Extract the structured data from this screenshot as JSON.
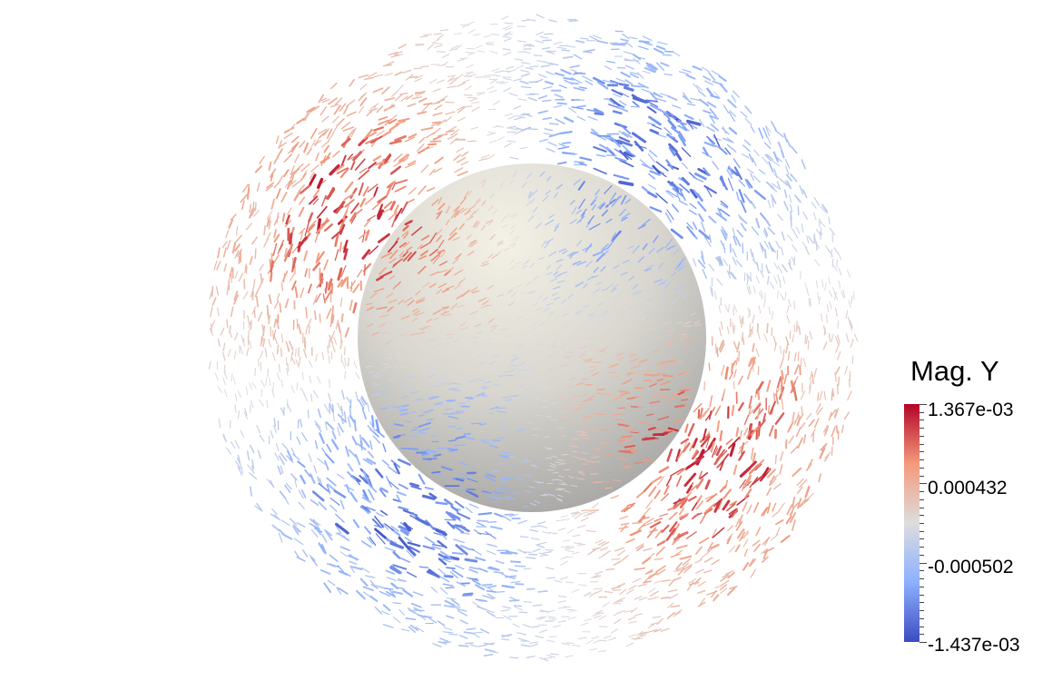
{
  "legend": {
    "title": "Mag. Y",
    "max_label": "1.367e-03",
    "mid_high_label": "0.000432",
    "mid_low_label": "-0.000502",
    "min_label": "-1.437e-03",
    "colormap": [
      "#3b4cc0",
      "#8db0fe",
      "#dddddd",
      "#f49a7b",
      "#b40426"
    ]
  },
  "scene": {
    "sphere_color": "#dcdad2",
    "glyph_positive_color": "#b0472e",
    "glyph_negative_color": "#4a66c8"
  }
}
